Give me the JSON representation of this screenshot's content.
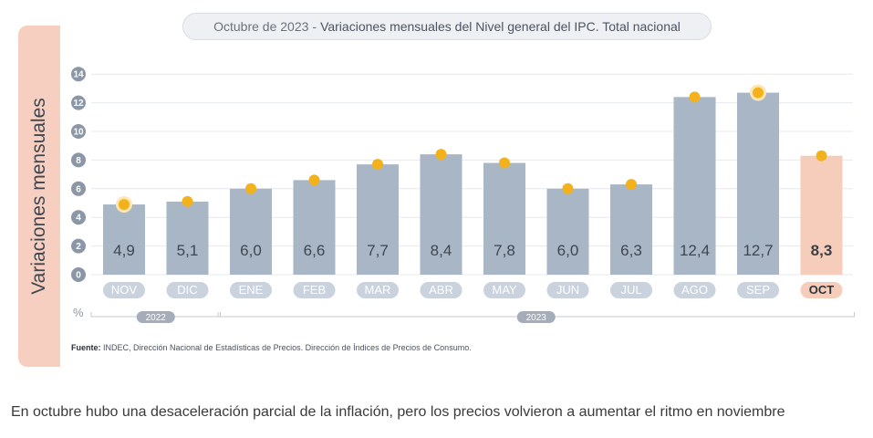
{
  "header": {
    "title_date": "Octubre de 2023",
    "title_separator": "-",
    "title_main": "Variaciones mensuales del Nivel general del IPC. Total nacional"
  },
  "y_axis_label": "Variaciones mensuales",
  "unit_symbol": "%",
  "source": {
    "label": "Fuente:",
    "text": "INDEC, Dirección Nacional de Estadísticas de Precios. Dirección de Índices de Precios de Consumo."
  },
  "caption": "En octubre hubo una desaceleración parcial de la inflación, pero los precios volvieron a aumentar el ritmo en noviembre",
  "colors": {
    "bar": "#a9b6c6",
    "bar_highlight": "#f6cdbb",
    "marker": "#f3b21b",
    "tick_badge": "#8b96a6",
    "month_badge": "#c9d2dd",
    "year_badge": "#a4adb9"
  },
  "chart_data": {
    "type": "bar",
    "title": "Octubre de 2023 - Variaciones mensuales del Nivel general del IPC. Total nacional",
    "xlabel": "",
    "ylabel": "Variaciones mensuales",
    "ylim": [
      0,
      14
    ],
    "yticks": [
      0,
      2,
      4,
      6,
      8,
      10,
      12,
      14
    ],
    "grid": true,
    "categories": [
      "NOV",
      "DIC",
      "ENE",
      "FEB",
      "MAR",
      "ABR",
      "MAY",
      "JUN",
      "JUL",
      "AGO",
      "SEP",
      "OCT"
    ],
    "values": [
      4.9,
      5.1,
      6.0,
      6.6,
      7.7,
      8.4,
      7.8,
      6.0,
      6.3,
      12.4,
      12.7,
      8.3
    ],
    "value_labels": [
      "4,9",
      "5,1",
      "6,0",
      "6,6",
      "7,7",
      "8,4",
      "7,8",
      "6,0",
      "6,3",
      "12,4",
      "12,7",
      "8,3"
    ],
    "highlight_index": 11,
    "ring_markers": [
      0,
      10
    ],
    "year_groups": [
      {
        "label": "2022",
        "start": 0,
        "end": 1
      },
      {
        "label": "2023",
        "start": 2,
        "end": 11
      }
    ]
  }
}
